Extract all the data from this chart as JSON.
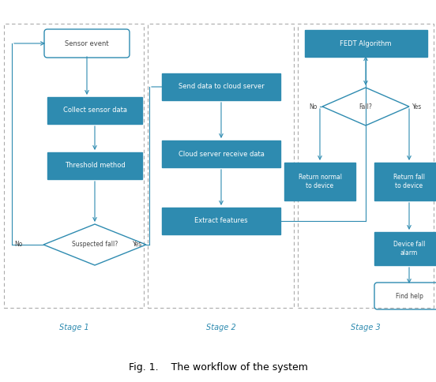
{
  "fig_width": 5.52,
  "fig_height": 4.84,
  "dpi": 100,
  "bg": "#ffffff",
  "box_fill": "#2e8bb0",
  "box_edge": "#2e8bb0",
  "text_white": "#ffffff",
  "text_dark": "#444444",
  "arrow_color": "#2e8bb0",
  "stage_color": "#2e8bb0",
  "border_dash": "#aaaaaa",
  "stage1_label": "Stage 1",
  "stage2_label": "Stage 2",
  "stage3_label": "Stage 3",
  "caption": "Fig. 1.    The workflow of the system",
  "font_size_box": 6.0,
  "font_size_label": 7.0,
  "font_size_caption": 9.0
}
